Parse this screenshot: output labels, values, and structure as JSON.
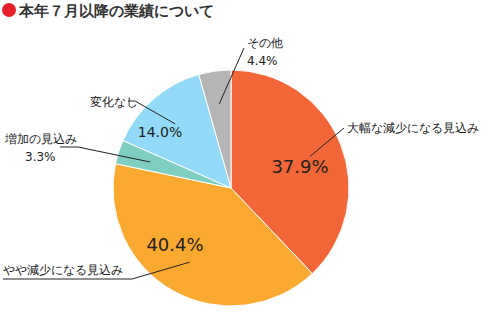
{
  "chart_data": {
    "type": "pie",
    "title": "本年７月以降の業績について",
    "categories": [
      "大幅な減少になる見込み",
      "やや減少になる見込み",
      "増加の見込み",
      "変化なし",
      "その他"
    ],
    "values": [
      37.9,
      40.4,
      3.3,
      14.0,
      4.4
    ],
    "value_labels": [
      "37.9%",
      "40.4%",
      "3.3%",
      "14.0%",
      "4.4%"
    ],
    "colors": [
      "#f26637",
      "#f9a930",
      "#7fcec2",
      "#93d9f8",
      "#b5b5b5"
    ],
    "data_labels": true
  }
}
